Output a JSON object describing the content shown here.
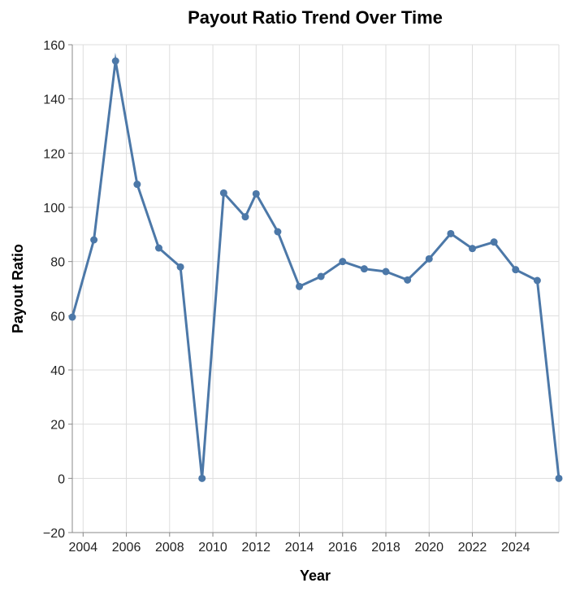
{
  "chart_data": {
    "type": "line",
    "title": "Payout Ratio Trend Over Time",
    "xlabel": "Year",
    "ylabel": "Payout Ratio",
    "xlim": [
      2003.5,
      2026.0
    ],
    "ylim": [
      -20,
      160
    ],
    "x_ticks": [
      2004,
      2006,
      2008,
      2010,
      2012,
      2014,
      2016,
      2018,
      2020,
      2022,
      2024
    ],
    "y_ticks": [
      -20,
      0,
      20,
      40,
      60,
      80,
      100,
      120,
      140,
      160
    ],
    "grid": true,
    "series": [
      {
        "color": "#4c78a8",
        "x": [
          2003.5,
          2004.5,
          2005.5,
          2006.5,
          2007.5,
          2008.5,
          2009.5,
          2010.5,
          2011.5,
          2012.0,
          2013.0,
          2014.0,
          2015.0,
          2016.0,
          2017.0,
          2018.0,
          2019.0,
          2020.0,
          2021.0,
          2022.0,
          2023.0,
          2024.0,
          2025.0,
          2026.0
        ],
        "y": [
          59.5,
          88.0,
          154.0,
          108.5,
          85.0,
          78.0,
          0.0,
          105.3,
          96.5,
          105.0,
          91.0,
          70.8,
          74.5,
          80.0,
          77.3,
          76.3,
          73.2,
          81.0,
          90.3,
          84.8,
          87.2,
          77.0,
          73.0,
          0.0
        ]
      }
    ]
  }
}
